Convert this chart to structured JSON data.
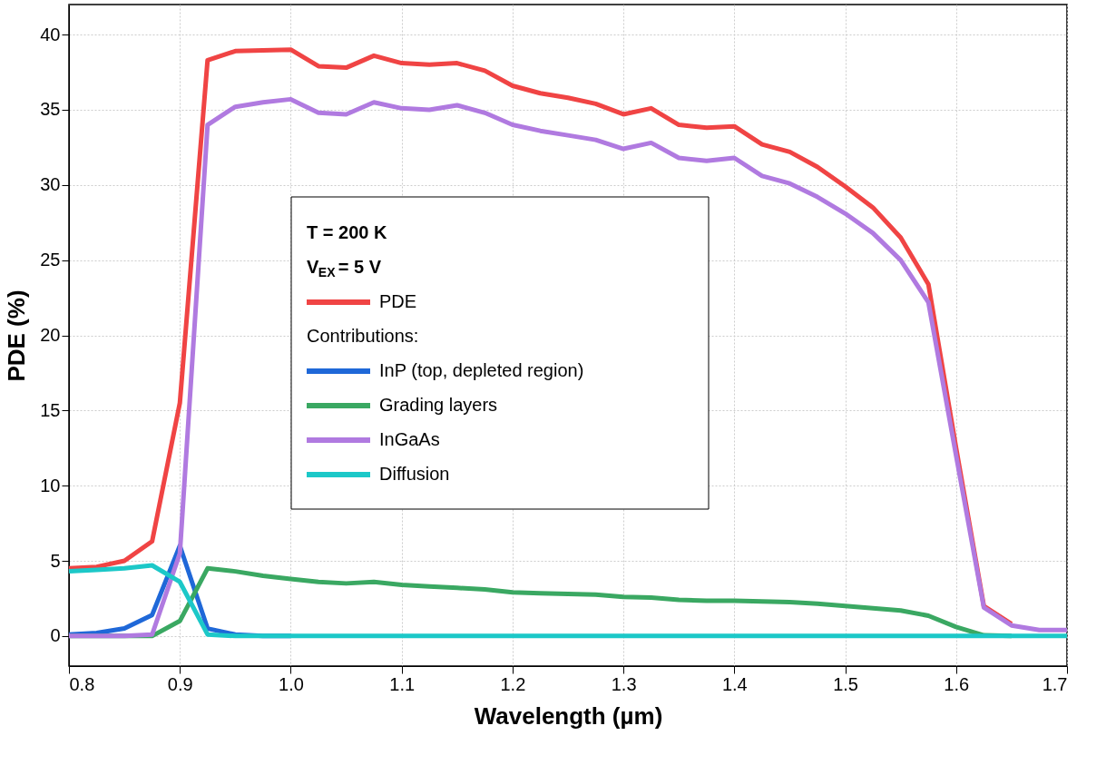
{
  "chart_data": {
    "type": "line",
    "xlabel": "Wavelength (µm)",
    "ylabel": "PDE (%)",
    "x": [
      0.8,
      0.825,
      0.85,
      0.875,
      0.9,
      0.925,
      0.95,
      0.975,
      1.0,
      1.025,
      1.05,
      1.075,
      1.1,
      1.125,
      1.15,
      1.175,
      1.2,
      1.225,
      1.25,
      1.275,
      1.3,
      1.325,
      1.35,
      1.375,
      1.4,
      1.425,
      1.45,
      1.475,
      1.5,
      1.525,
      1.55,
      1.575,
      1.6,
      1.625,
      1.65,
      1.675,
      1.7
    ],
    "series": [
      {
        "name": "PDE",
        "color": "#f04444",
        "values": [
          4.5,
          4.6,
          5.0,
          6.3,
          15.5,
          38.3,
          38.9,
          38.95,
          39.0,
          37.9,
          37.8,
          38.6,
          38.1,
          38.0,
          38.1,
          37.6,
          36.6,
          36.1,
          35.8,
          35.4,
          34.7,
          35.1,
          34.0,
          33.8,
          33.9,
          32.7,
          32.2,
          31.2,
          29.9,
          28.5,
          26.5,
          23.4,
          12.5,
          2.0,
          0.8,
          null,
          null
        ]
      },
      {
        "name": "InP (top, depleted region)",
        "color": "#1f68d8",
        "values": [
          0.1,
          0.2,
          0.5,
          1.4,
          6.0,
          0.5,
          0.1,
          0,
          0,
          null,
          null,
          null,
          null,
          null,
          null,
          null,
          null,
          null,
          null,
          null,
          null,
          null,
          null,
          null,
          null,
          null,
          null,
          null,
          null,
          null,
          null,
          null,
          null,
          null,
          null,
          null,
          null
        ]
      },
      {
        "name": "Grading layers",
        "color": "#3aa862",
        "values": [
          0,
          0,
          0,
          0,
          1.0,
          4.5,
          4.3,
          4.0,
          3.8,
          3.6,
          3.5,
          3.6,
          3.4,
          3.3,
          3.2,
          3.1,
          2.9,
          2.85,
          2.8,
          2.75,
          2.6,
          2.55,
          2.4,
          2.35,
          2.35,
          2.3,
          2.25,
          2.15,
          2.0,
          1.85,
          1.7,
          1.35,
          0.6,
          0.05,
          0,
          null,
          null
        ]
      },
      {
        "name": "InGaAs",
        "color": "#b07ae0",
        "values": [
          0,
          0,
          0,
          0.1,
          5.5,
          34.0,
          35.2,
          35.5,
          35.7,
          34.8,
          34.7,
          35.5,
          35.1,
          35.0,
          35.3,
          34.8,
          34.0,
          33.6,
          33.3,
          33.0,
          32.4,
          32.8,
          31.8,
          31.6,
          31.8,
          30.6,
          30.1,
          29.2,
          28.1,
          26.8,
          25.0,
          22.2,
          12.0,
          1.9,
          0.7,
          0.4,
          0.4
        ]
      },
      {
        "name": "Diffusion",
        "color": "#1cc8c8",
        "values": [
          4.3,
          4.4,
          4.5,
          4.7,
          3.6,
          0.1,
          0,
          0,
          0,
          0,
          0,
          0,
          0,
          0,
          0,
          0,
          0,
          0,
          0,
          0,
          0,
          0,
          0,
          0,
          0,
          0,
          0,
          0,
          0,
          0,
          0,
          0,
          0,
          0,
          0,
          0,
          0
        ]
      }
    ],
    "annotations": [
      "T = 200 K",
      "V$_{EX}$ = 5 V",
      "Contributions:"
    ],
    "xlim": [
      0.8,
      1.7
    ],
    "xticks": [
      0.8,
      0.9,
      {
        "value": 1.0,
        "label": "1.0"
      },
      1.1,
      1.2,
      1.3,
      1.4,
      1.5,
      1.6,
      1.7
    ],
    "ylim": [
      -2,
      42
    ],
    "yticks": [
      0,
      5,
      10,
      15,
      20,
      25,
      30,
      35,
      40
    ],
    "grid": true,
    "legend": "center",
    "line_style": "solid",
    "marker": "none"
  }
}
